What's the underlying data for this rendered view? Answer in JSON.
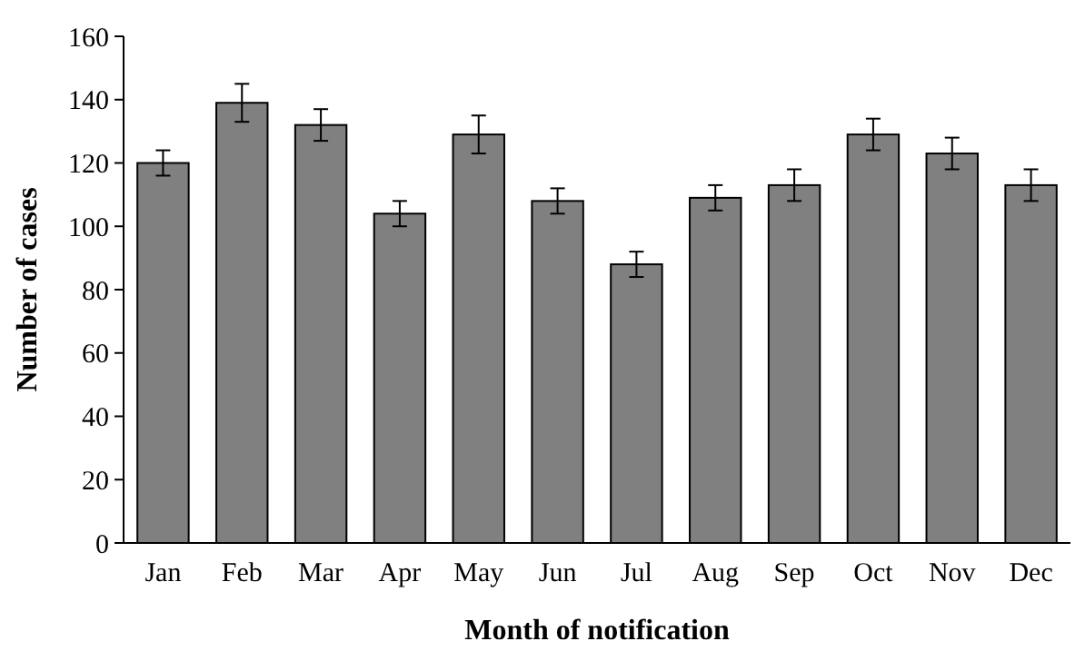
{
  "chart_data": {
    "type": "bar",
    "xlabel": "Month of notification",
    "ylabel": "Number of cases",
    "categories": [
      "Jan",
      "Feb",
      "Mar",
      "Apr",
      "May",
      "Jun",
      "Jul",
      "Aug",
      "Sep",
      "Oct",
      "Nov",
      "Dec"
    ],
    "values": [
      120,
      139,
      132,
      104,
      129,
      108,
      88,
      109,
      113,
      129,
      123,
      113
    ],
    "errors": [
      4,
      6,
      5,
      4,
      6,
      4,
      4,
      4,
      5,
      5,
      5,
      5
    ],
    "color": "#808080",
    "ylim": [
      0,
      160
    ],
    "yticks": [
      0,
      20,
      40,
      60,
      80,
      100,
      120,
      140,
      160
    ],
    "grid": false
  }
}
